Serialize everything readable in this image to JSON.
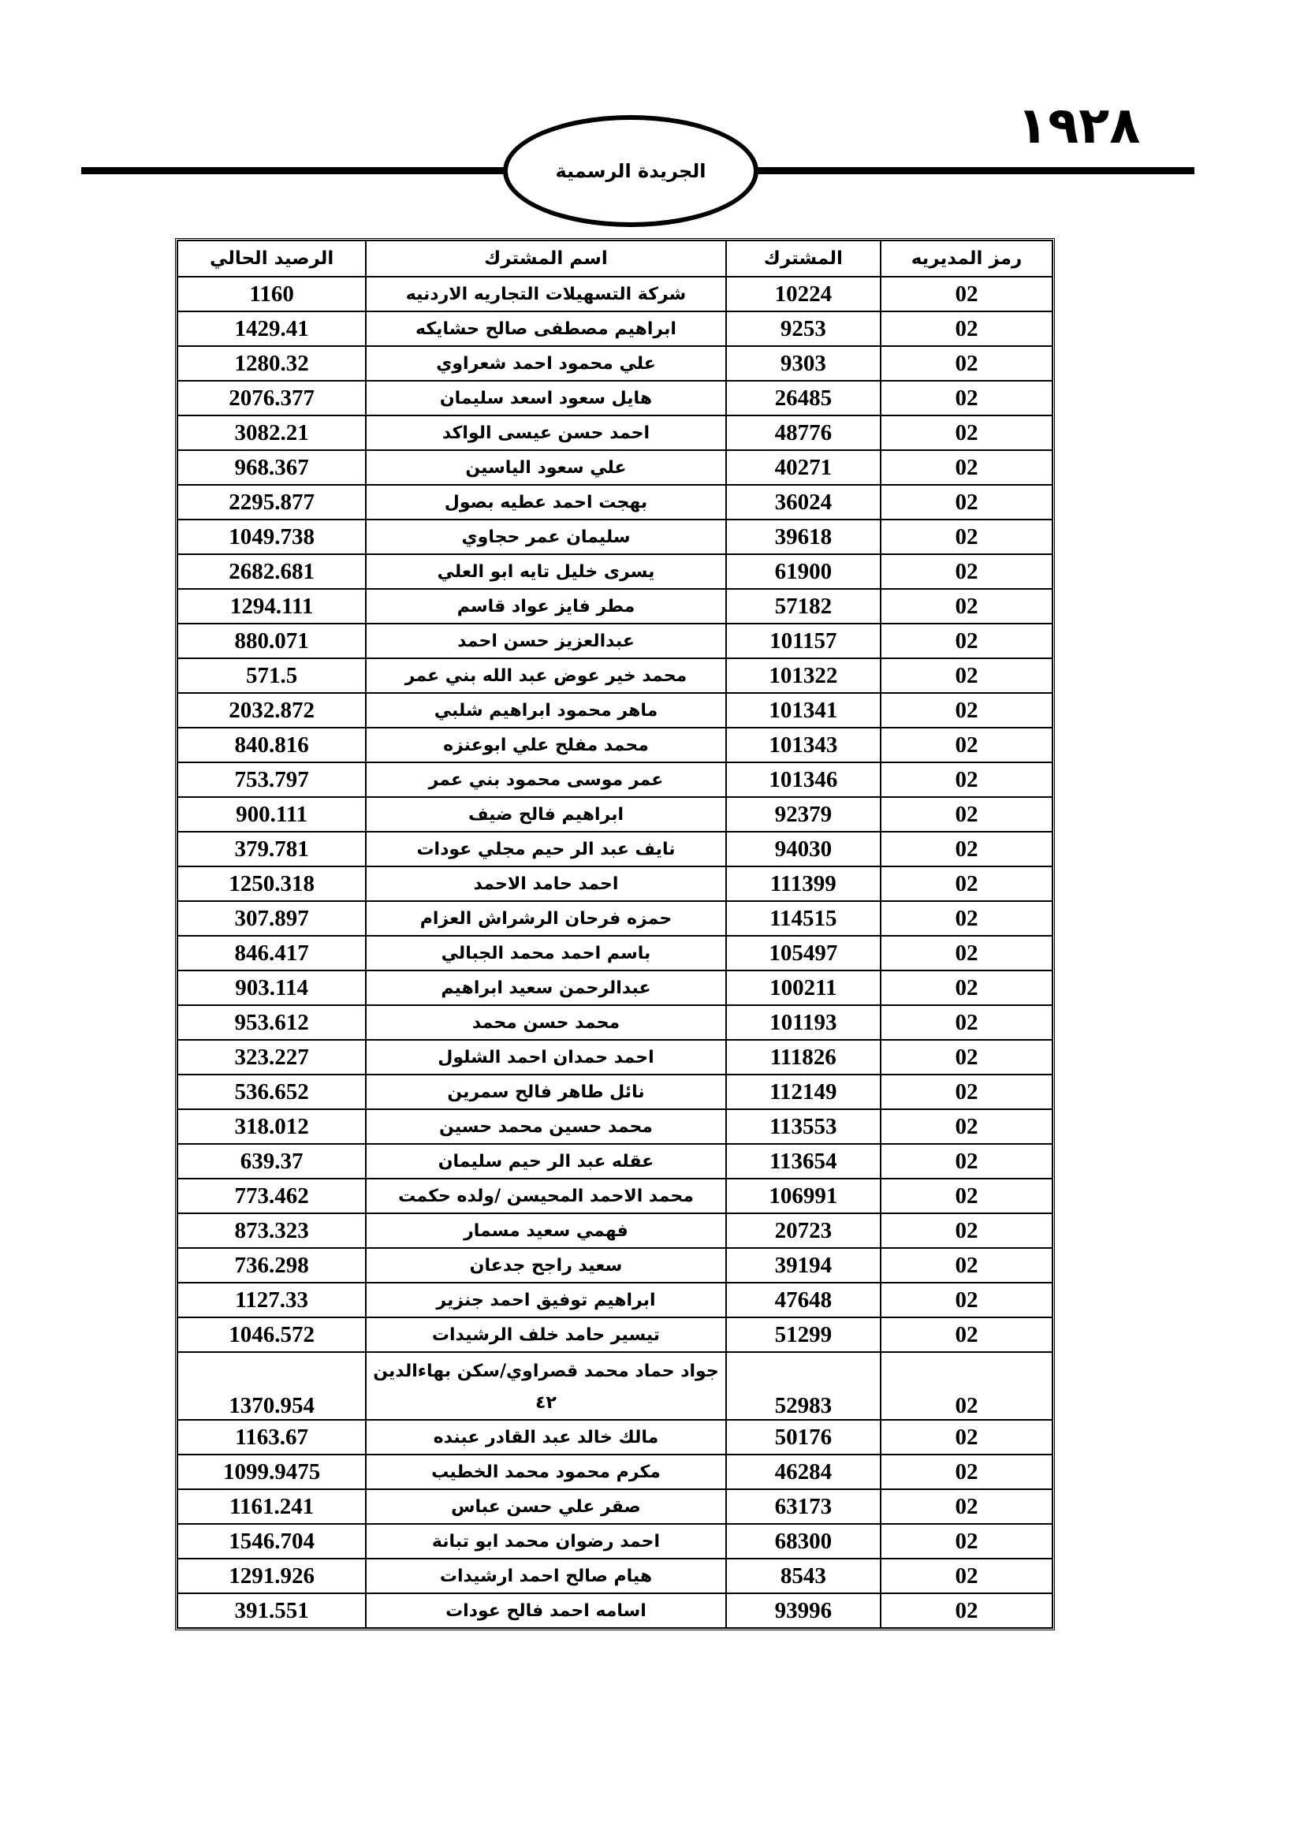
{
  "page_number": "١٩٢٨",
  "header_title": "الجريدة الرسمية",
  "table": {
    "headers": [
      "رمز المديريه",
      "المشترك",
      "اسم المشترك",
      "الرصيد الحالي"
    ],
    "rows": [
      [
        "02",
        "10224",
        "شركة التسهيلات التجاريه الاردنيه",
        "1160"
      ],
      [
        "02",
        "9253",
        "ابراهيم مصطفى صالح حشايكه",
        "1429.41"
      ],
      [
        "02",
        "9303",
        "علي محمود احمد شعراوي",
        "1280.32"
      ],
      [
        "02",
        "26485",
        "هايل سعود اسعد سليمان",
        "2076.377"
      ],
      [
        "02",
        "48776",
        "احمد حسن عيسى الواكد",
        "3082.21"
      ],
      [
        "02",
        "40271",
        "علي سعود الياسين",
        "968.367"
      ],
      [
        "02",
        "36024",
        "بهجت احمد عطيه بصول",
        "2295.877"
      ],
      [
        "02",
        "39618",
        "سليمان عمر حجاوي",
        "1049.738"
      ],
      [
        "02",
        "61900",
        "يسرى خليل تايه ابو العلي",
        "2682.681"
      ],
      [
        "02",
        "57182",
        "مطر فايز عواد قاسم",
        "1294.111"
      ],
      [
        "02",
        "101157",
        "عبدالعزيز حسن احمد",
        "880.071"
      ],
      [
        "02",
        "101322",
        "محمد خير عوض عبد الله بني عمر",
        "571.5"
      ],
      [
        "02",
        "101341",
        "ماهر محمود ابراهيم شلبي",
        "2032.872"
      ],
      [
        "02",
        "101343",
        "محمد مفلح علي ابوعنزه",
        "840.816"
      ],
      [
        "02",
        "101346",
        "عمر موسى محمود بني عمر",
        "753.797"
      ],
      [
        "02",
        "92379",
        "ابراهيم فالح ضيف",
        "900.111"
      ],
      [
        "02",
        "94030",
        "نايف عبد الر حيم مجلي عودات",
        "379.781"
      ],
      [
        "02",
        "111399",
        "احمد حامد الاحمد",
        "1250.318"
      ],
      [
        "02",
        "114515",
        "حمزه فرحان الرشراش العزام",
        "307.897"
      ],
      [
        "02",
        "105497",
        "باسم احمد محمد الجبالي",
        "846.417"
      ],
      [
        "02",
        "100211",
        "عبدالرحمن سعيد ابراهيم",
        "903.114"
      ],
      [
        "02",
        "101193",
        "محمد حسن محمد",
        "953.612"
      ],
      [
        "02",
        "111826",
        "احمد حمدان احمد الشلول",
        "323.227"
      ],
      [
        "02",
        "112149",
        "نائل طاهر فالح سمرين",
        "536.652"
      ],
      [
        "02",
        "113553",
        "محمد حسين محمد حسين",
        "318.012"
      ],
      [
        "02",
        "113654",
        "عقله عبد الر حيم سليمان",
        "639.37"
      ],
      [
        "02",
        "106991",
        "محمد الاحمد المحيسن /ولده حكمت",
        "773.462"
      ],
      [
        "02",
        "20723",
        "فهمي سعيد مسمار",
        "873.323"
      ],
      [
        "02",
        "39194",
        "سعيد راجح جدعان",
        "736.298"
      ],
      [
        "02",
        "47648",
        "ابراهيم توفيق احمد جنزير",
        "1127.33"
      ],
      [
        "02",
        "51299",
        "تيسير حامد خلف الرشيدات",
        "1046.572"
      ],
      [
        "02",
        "52983",
        "جواد حماد محمد قصراوي/سكن بهاءالدين ٤٢",
        "1370.954"
      ],
      [
        "02",
        "50176",
        "مالك خالد عبد القادر عبنده",
        "1163.67"
      ],
      [
        "02",
        "46284",
        "مكرم محمود محمد الخطيب",
        "1099.9475"
      ],
      [
        "02",
        "63173",
        "صقر علي حسن عباس",
        "1161.241"
      ],
      [
        "02",
        "68300",
        "احمد رضوان محمد  ابو تبانة",
        "1546.704"
      ],
      [
        "02",
        "8543",
        "هيام صالح احمد ارشيدات",
        "1291.926"
      ],
      [
        "02",
        "93996",
        "اسامه احمد فالح عودات",
        "391.551"
      ]
    ]
  }
}
